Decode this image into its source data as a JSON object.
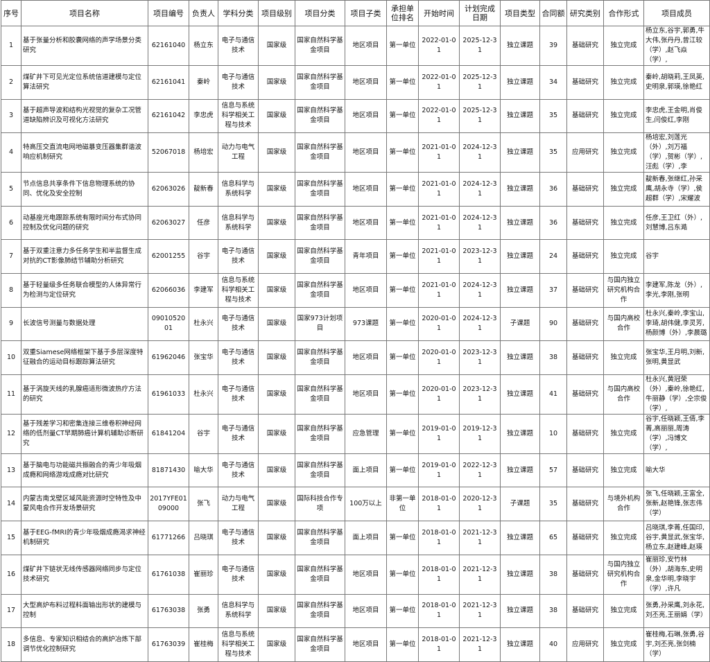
{
  "table": {
    "headers": [
      "序号",
      "项目名称",
      "项目编号",
      "负责人",
      "学科分类",
      "项目级别",
      "项目分类",
      "项目子类",
      "承担单位排名",
      "开始时间",
      "计划完成日期",
      "项目类型",
      "合同额",
      "研究类别",
      "合作形式",
      "项目成员"
    ],
    "rows": [
      [
        "1",
        "基于张量分析和胶囊网络的声学场景分类研究",
        "62161040",
        "杨立东",
        "电子与通信技术",
        "国家级",
        "国家自然科学基金项目",
        "地区项目",
        "第一单位",
        "2022-01-01",
        "2025-12-31",
        "独立课题",
        "39",
        "基础研究",
        "独立完成",
        "杨立东,谷宇,郭勇,牛大伟,张丹丹,曾江较（学）,赵飞焱（学）,"
      ],
      [
        "2",
        "煤矿井下可见光定位系统信道建模与定位算法研究",
        "62161041",
        "秦岭",
        "电子与通信技术",
        "国家级",
        "国家自然科学基金项目",
        "地区项目",
        "第一单位",
        "2022-01-01",
        "2025-12-31",
        "独立课题",
        "34",
        "基础研究",
        "独立完成",
        "秦岭,胡晓莉,王凤英,史明泉,郭瑛,徐艳红"
      ],
      [
        "3",
        "基于超声导波和结构光视觉的复杂工况管道缺陷辨识及可视化方法研究",
        "62161042",
        "李忠虎",
        "信息与系统科学相关工程与技术",
        "国家级",
        "国家自然科学基金项目",
        "地区项目",
        "第一单位",
        "2022-01-01",
        "2025-12-31",
        "独立课题",
        "35",
        "基础研究",
        "独立完成",
        "李忠虎,王金明,肖俊生,闫俊红,李刚"
      ],
      [
        "4",
        "特高压交直流电网地磁暴变压器集群谐波响应机制研究",
        "52067018",
        "杨培宏",
        "动力与电气工程",
        "国家级",
        "国家自然科学基金项目",
        "地区项目",
        "第一单位",
        "2021-01-01",
        "2024-12-31",
        "独立课题",
        "35",
        "应用研究",
        "独立完成",
        "杨培宏,刘莲光（外）,刘万福（学）,贺彬（学）,汪彪（学）,李"
      ],
      [
        "5",
        "节点信息共享条件下信息物理系统的协同、优化及安全控制",
        "62063026",
        "靛新春",
        "信息科学与系统科学",
        "国家级",
        "国家自然科学基金项目",
        "地区项目",
        "第一单位",
        "2021-01-01",
        "2024-12-31",
        "独立课题",
        "36",
        "基础研究",
        "独立完成",
        "靛新春,张继红,孙采鹰,胡永寺（学）,侯超群（学）,宋耀波"
      ],
      [
        "6",
        "动基座光电跟踪系统有限时间分布式协同控制及优化问题的研究",
        "62063027",
        "任彦",
        "信息科学与系统科学",
        "国家级",
        "国家自然科学基金项目",
        "地区项目",
        "第一单位",
        "2021-01-01",
        "2024-12-31",
        "独立课题",
        "36",
        "基础研究",
        "独立完成",
        "任彦,王卫红（外）,刘慧博,吕东澔"
      ],
      [
        "7",
        "基于双重注意力多任务学生和半监督生成对抗的CT影像肺结节辅助分析研究",
        "62001255",
        "谷宇",
        "电子与通信技术",
        "国家级",
        "国家自然科学基金项目",
        "青年项目",
        "第一单位",
        "2021-01-01",
        "2023-12-31",
        "独立课题",
        "24",
        "基础研究",
        "独立完成",
        "谷宇"
      ],
      [
        "8",
        "基于轻量级多任务联合模型的人体异常行为检测与定位研究",
        "62066036",
        "李建军",
        "信息与系统科学相关工程与技术",
        "国家级",
        "国家自然科学基金项目",
        "地区项目",
        "第一单位",
        "2021-01-01",
        "2024-12-31",
        "独立课题",
        "37",
        "基础研究",
        "与国内独立研究机构合作",
        "李建军,陈龙（外）,李光,李刚,张明"
      ],
      [
        "9",
        "长波信号测量与数据处理",
        "0901052001",
        "杜永兴",
        "电子与通信技术",
        "国家级",
        "国家973计划项目",
        "973课题",
        "第一单位",
        "2020-01-01",
        "2024-12-31",
        "子课题",
        "90",
        "基础研究",
        "与国内高校合作",
        "杜永兴,秦岭,李宝山,李琦,胡伟健,李灵芳,杨颜博（外）,李晨璐"
      ],
      [
        "10",
        "双重Siamese网络框架下基于多层深度特征融合的运动目标跟踪算法研究",
        "61962046",
        "张宝华",
        "电子与通信技术",
        "国家级",
        "国家自然科学基金项目",
        "地区项目",
        "第一单位",
        "2020-01-01",
        "2023-12-31",
        "独立课题",
        "38",
        "基础研究",
        "独立完成",
        "张宝华,王月明,刘新,张明,黄显武"
      ],
      [
        "11",
        "基于涡旋天线的乳腺癌适形微波热疗方法的研究",
        "61961033",
        "杜永兴",
        "电子与通信技术",
        "国家级",
        "国家自然科学基金项目",
        "地区项目",
        "第一单位",
        "2020-01-01",
        "2023-12-31",
        "独立课题",
        "41",
        "基础研究",
        "与国内高校合作",
        "杜永兴,黄冠荣（外）,秦岭,徐艳红,牛丽静（学）,仝宗俊（学）,"
      ],
      [
        "12",
        "基于残差学习和密集连接三维卷积神经网络的低剂量CT早期肺癌计算机辅助诊断研究",
        "61841204",
        "谷宇",
        "电子与通信技术",
        "国家级",
        "国家自然科学基金项目",
        "应急管理",
        "第一单位",
        "2019-01-01",
        "2019-12-31",
        "独立课题",
        "10",
        "基础研究",
        "独立完成",
        "谷宇,任晓颖,王倩,李菁,高丽丽,周涛（学）,冯博文（学）,"
      ],
      [
        "13",
        "基于脑电与功能磁共振融合的青少年吸烟成瘾和网络游戏成瘾对比研究",
        "81871430",
        "喻大华",
        "电子与通信技术",
        "国家级",
        "国家自然科学基金项目",
        "面上项目",
        "第一单位",
        "2019-01-01",
        "2022-12-31",
        "独立课题",
        "57",
        "基础研究",
        "独立完成",
        "喻大华"
      ],
      [
        "14",
        "内蒙古南戈壁区域风能资源时空特性及中蒙风电合作开发场景研究",
        "2017YFE0109000",
        "张飞",
        "动力与电气工程",
        "国家级",
        "国际科技合作专项",
        "100万以上",
        "非第一单位",
        "2018-01-01",
        "2020-12-31",
        "子课题",
        "35",
        "基础研究",
        "与境外机构合作",
        "张飞,任晓颖,王富全,张新,赵艳锋,张志伟（学）"
      ],
      [
        "15",
        "基于EEG-fMRI的青少年吸烟成瘾渴求神经机制研究",
        "61771266",
        "吕晓琪",
        "电子与通信技术",
        "国家级",
        "国家自然科学基金项目",
        "面上项目",
        "第一单位",
        "2018-01-01",
        "2021-12-31",
        "独立课题",
        "65",
        "基础研究",
        "独立完成",
        "吕晓琪,李菁,任国印,谷宇,黄显武,张宝华,杨立东,赵建峰,赵瑛"
      ],
      [
        "16",
        "煤矿井下链状无线传感器网络同步与定位技术研究",
        "61761038",
        "崔丽珍",
        "电子与通信技术",
        "国家级",
        "国家自然科学基金项目",
        "地区项目",
        "第一单位",
        "2018-01-01",
        "2021-12-31",
        "独立课题",
        "38",
        "基础研究",
        "与国内独立研究机构合作",
        "崔丽珍,安竹林（外）,胡海东,史明泉,金华明,李晓宇（学）,许凡"
      ],
      [
        "17",
        "大型高炉布料过程料面输出形状的建模与控制",
        "61763038",
        "张勇",
        "信息科学与系统科学",
        "国家级",
        "国家自然科学基金项目",
        "地区项目",
        "第一单位",
        "2018-01-01",
        "2021-12-31",
        "独立课题",
        "38",
        "基础研究",
        "独立完成",
        "张勇,孙采鹰,刘永花,刘丕亮,王丽娟（学）"
      ],
      [
        "18",
        "多信息、专家知识相结合的高炉冶炼下部调节优化控制研究",
        "61763039",
        "崔桂梅",
        "信息与系统科学相关工程与技术",
        "国家级",
        "国家自然科学基金项目",
        "地区项目",
        "第一单位",
        "2018-01-01",
        "2021-12-31",
        "独立课题",
        "40",
        "应用研究",
        "独立完成",
        "崔桂梅,石琳,张勇,谷宇,刘丕亮,张剑楠（学）"
      ]
    ]
  }
}
